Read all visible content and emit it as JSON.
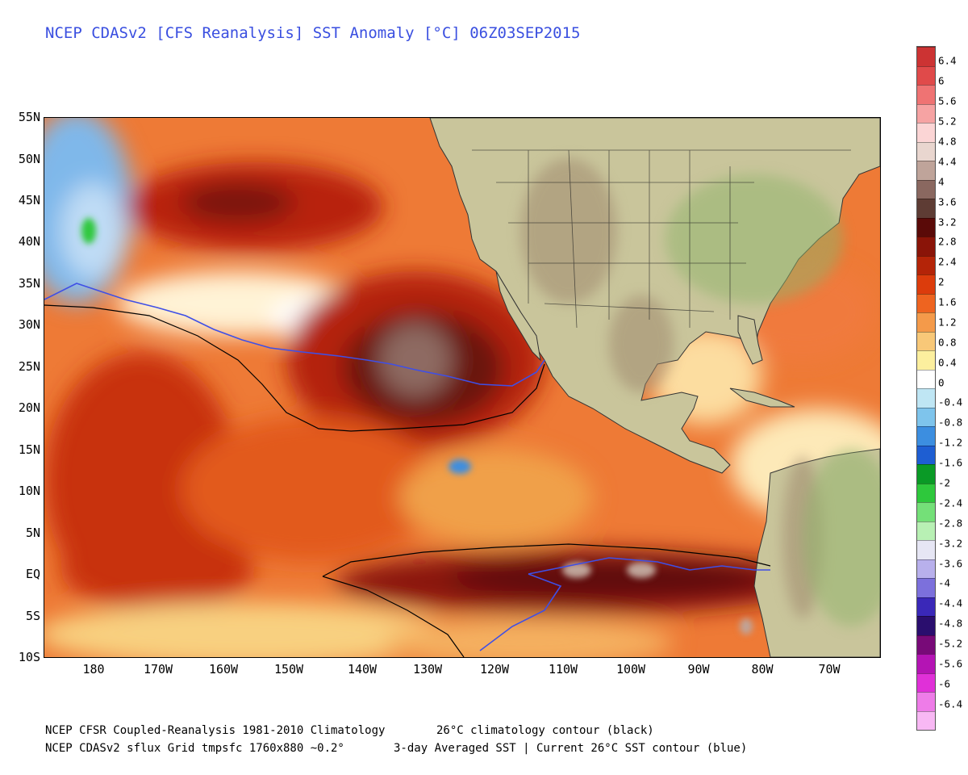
{
  "title": "NCEP CDASv2 [CFS Reanalysis] SST Anomaly [°C] 06Z03SEP2015",
  "map": {
    "lat_labels": [
      "55N",
      "50N",
      "45N",
      "40N",
      "35N",
      "30N",
      "25N",
      "20N",
      "15N",
      "10N",
      "5N",
      "EQ",
      "5S",
      "10S"
    ],
    "lon_labels": [
      "180",
      "170W",
      "160W",
      "150W",
      "140W",
      "130W",
      "120W",
      "110W",
      "100W",
      "90W",
      "80W",
      "70W"
    ],
    "contour_climatology_color": "#000000",
    "contour_current_color": "#3f4fe6",
    "land_color": "#c8c49a"
  },
  "colorbar": {
    "labels": [
      "6.4",
      "6",
      "5.6",
      "5.2",
      "4.8",
      "4.4",
      "4",
      "3.6",
      "3.2",
      "2.8",
      "2.4",
      "2",
      "1.6",
      "1.2",
      "0.8",
      "0.4",
      "0",
      "-0.4",
      "-0.8",
      "-1.2",
      "-1.6",
      "-2",
      "-2.4",
      "-2.8",
      "-3.2",
      "-3.6",
      "-4",
      "-4.4",
      "-4.8",
      "-5.2",
      "-5.6",
      "-6",
      "-6.4"
    ],
    "colors": [
      "#cc3333",
      "#e04a4a",
      "#ef7373",
      "#f6a3a3",
      "#fbd5d5",
      "#e9d6cf",
      "#bfa49a",
      "#8a6860",
      "#5e3c34",
      "#5a0a08",
      "#8a1408",
      "#b42408",
      "#dc3c0c",
      "#ee6420",
      "#f49a4a",
      "#f8c878",
      "#fcef9e",
      "#ffffff",
      "#bfe6f4",
      "#7ec4ec",
      "#3c8ee0",
      "#1e5ed2",
      "#0a9a26",
      "#2ec83c",
      "#74e078",
      "#b8f0b4",
      "#e6e6f4",
      "#b8b0ec",
      "#7c70dc",
      "#3a28b8",
      "#2a0e6e",
      "#780a78",
      "#b414b4",
      "#e030d8",
      "#ee7ce8",
      "#f8b8f4"
    ]
  },
  "footer": {
    "line1_left": "NCEP CFSR Coupled-Reanalysis 1981-2010 Climatology",
    "line1_right": "26°C climatology contour (black)",
    "line2_left": "NCEP CDASv2 sflux Grid tmpsfc 1760x880 ~0.2°",
    "line2_right": "3-day Averaged SST | Current 26°C SST contour (blue)"
  }
}
